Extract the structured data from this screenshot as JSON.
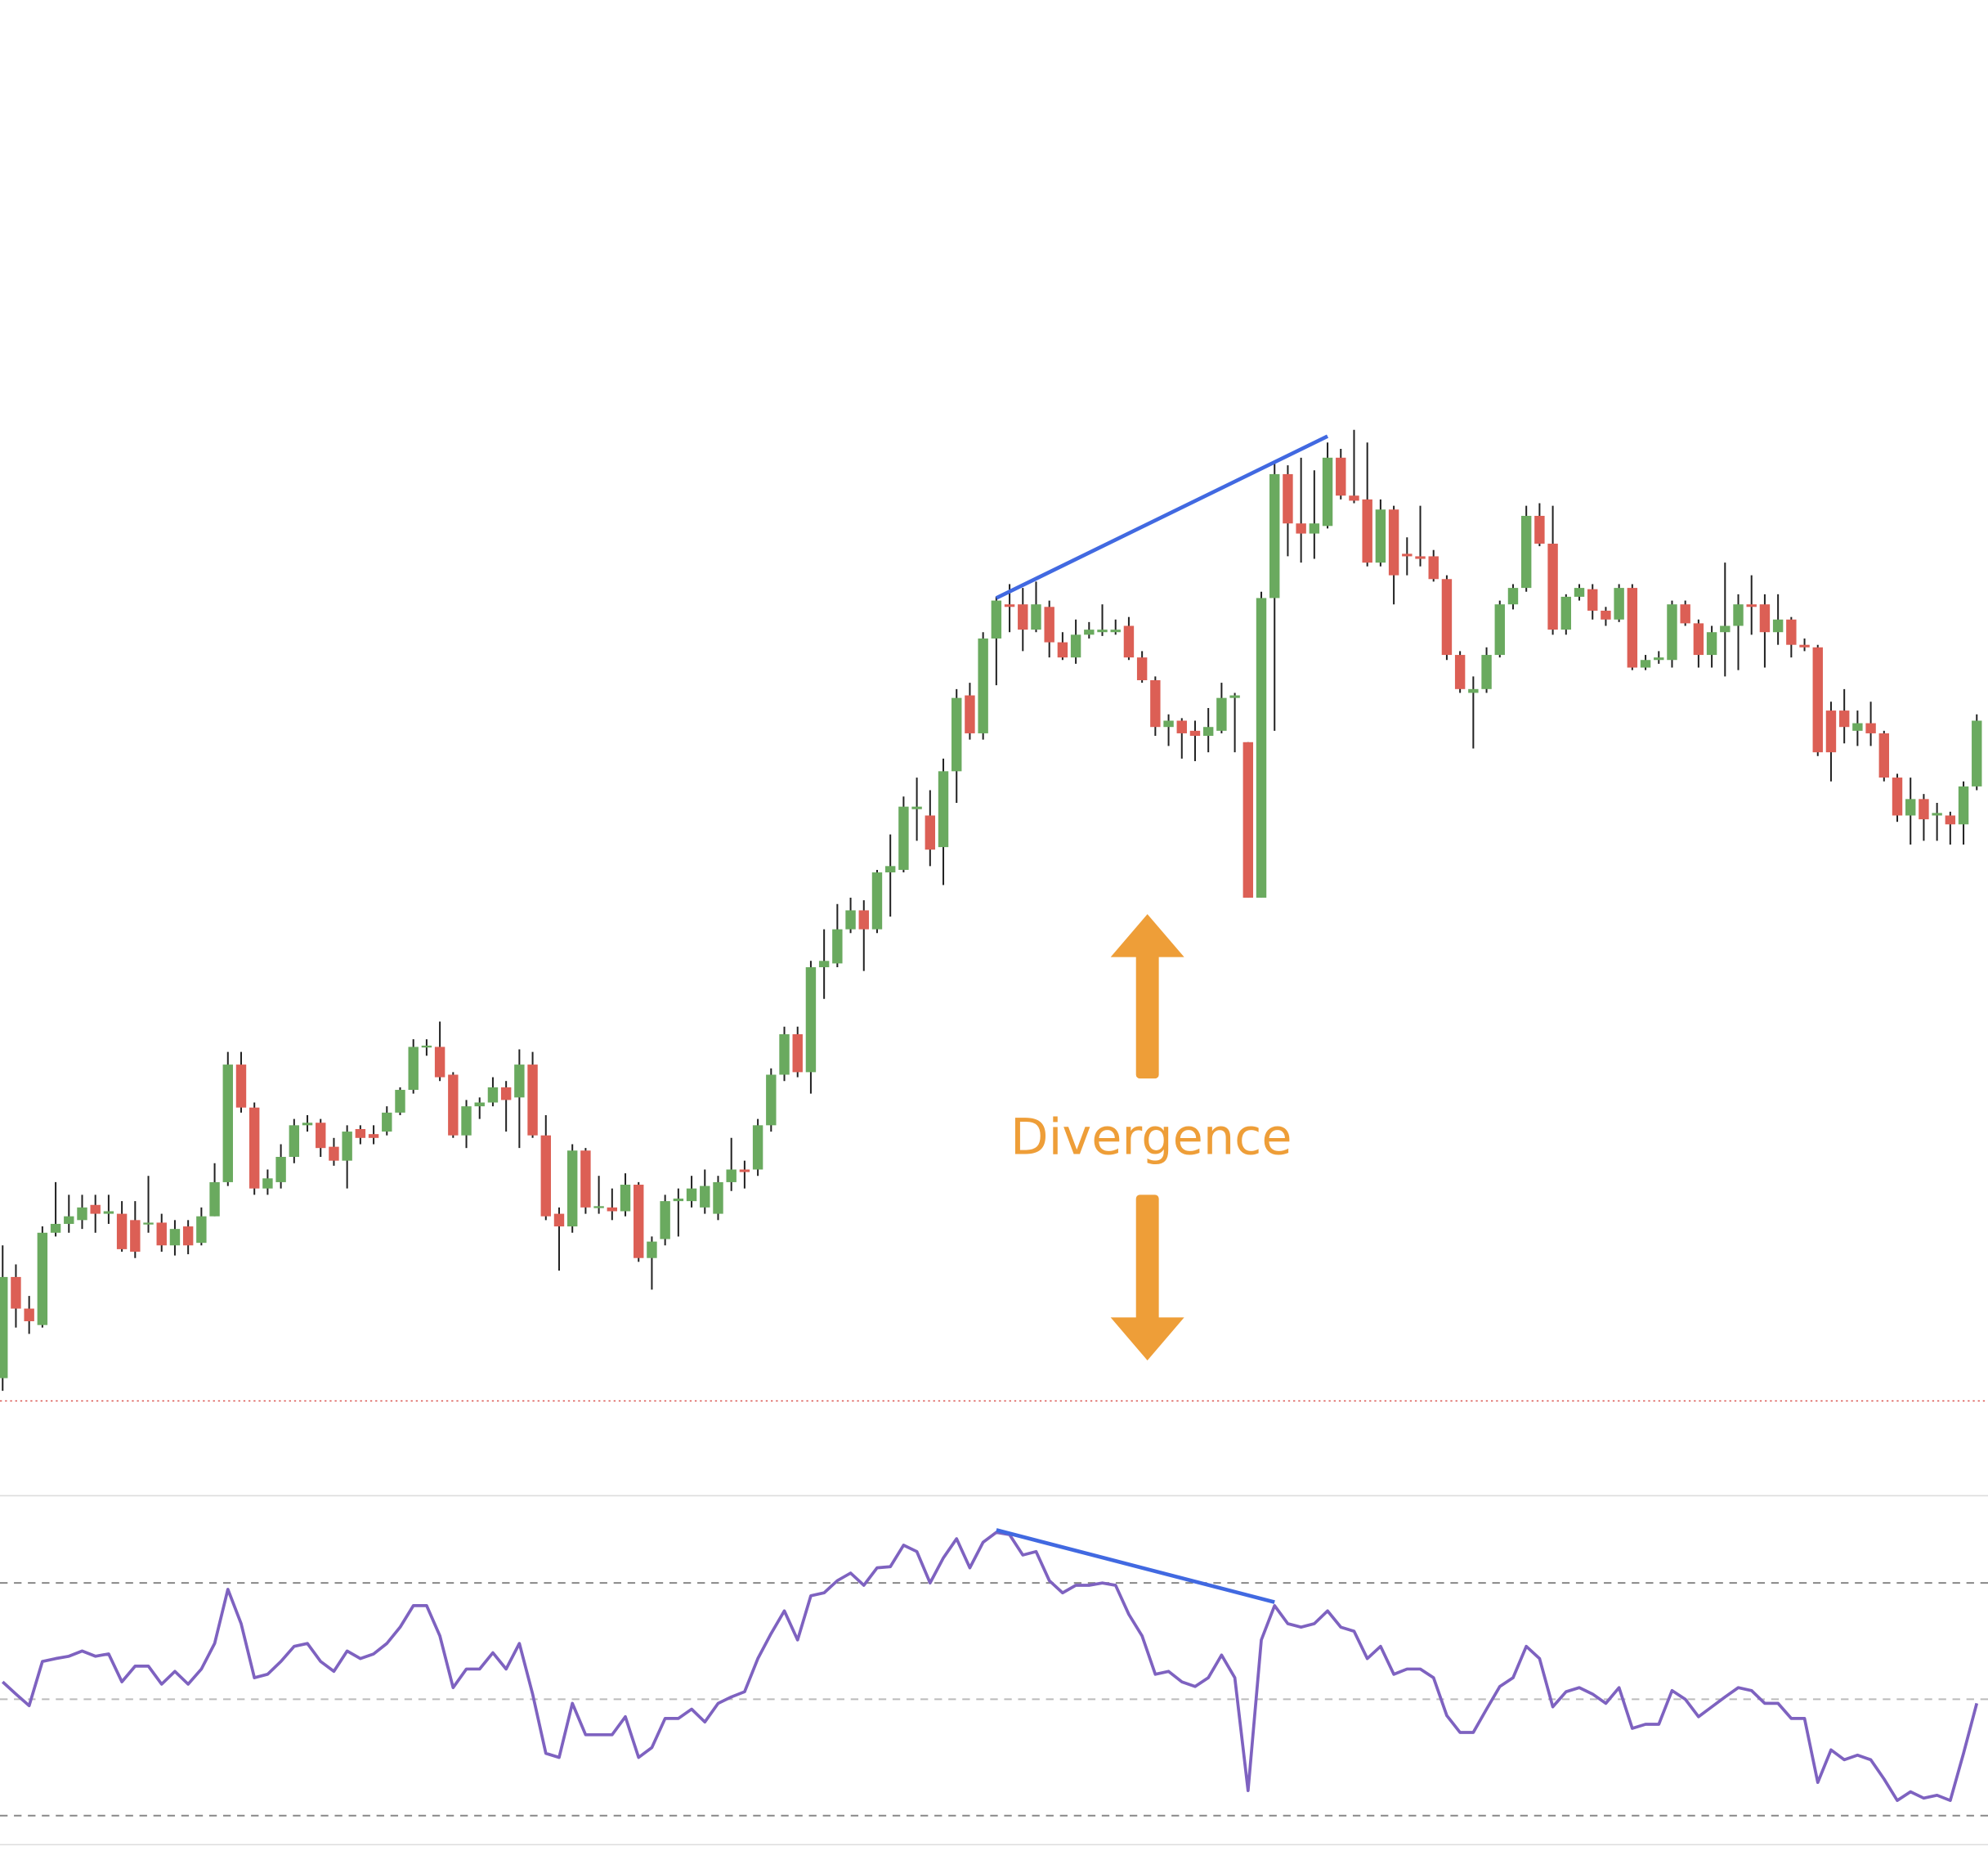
{
  "chart_data": [
    {
      "type": "candlestick",
      "open": [
        110,
        190,
        165,
        152,
        225,
        232,
        235,
        247,
        240,
        240,
        235,
        232,
        233,
        215,
        230,
        217,
        238,
        265,
        358,
        324,
        260,
        265,
        285,
        310,
        312,
        293,
        282,
        307,
        303,
        305,
        320,
        338,
        372,
        372,
        350,
        302,
        325,
        328,
        340,
        332,
        358,
        302,
        240,
        230,
        290,
        245,
        245,
        242,
        263,
        205,
        220,
        250,
        250,
        245,
        240,
        265,
        275,
        275,
        310,
        350,
        382,
        352,
        435,
        438,
        465,
        480,
        465,
        510,
        512,
        560,
        555,
        530,
        590,
        650,
        620,
        695,
        722,
        722,
        702,
        720,
        692,
        680,
        698,
        700,
        700,
        705,
        680,
        662,
        625,
        630,
        622,
        618,
        622,
        648,
        613,
        490,
        727,
        825,
        786,
        778,
        784,
        838,
        808,
        805,
        755,
        797,
        762,
        760,
        760,
        742,
        682,
        652,
        655,
        682,
        722,
        735,
        792,
        770,
        702,
        728,
        734,
        717,
        710,
        735,
        672,
        678,
        678,
        722,
        707,
        682,
        700,
        705,
        722,
        722,
        700,
        710,
        690,
        688,
        638,
        638,
        622,
        628,
        620,
        585,
        555,
        568,
        555,
        555,
        548,
        578
      ],
      "high": [
        215,
        200,
        175,
        230,
        265,
        255,
        255,
        255,
        255,
        250,
        250,
        270,
        240,
        235,
        235,
        245,
        280,
        368,
        368,
        328,
        275,
        295,
        315,
        318,
        315,
        300,
        310,
        310,
        310,
        325,
        340,
        378,
        378,
        392,
        352,
        330,
        332,
        348,
        345,
        370,
        368,
        318,
        245,
        295,
        292,
        270,
        260,
        272,
        265,
        222,
        255,
        260,
        270,
        275,
        270,
        300,
        282,
        315,
        355,
        388,
        388,
        440,
        465,
        485,
        490,
        488,
        512,
        540,
        570,
        585,
        575,
        600,
        655,
        660,
        700,
        728,
        738,
        735,
        740,
        725,
        700,
        710,
        708,
        722,
        710,
        712,
        685,
        665,
        635,
        632,
        630,
        640,
        660,
        652,
        613,
        732,
        835,
        832,
        838,
        828,
        850,
        845,
        860,
        850,
        805,
        800,
        775,
        800,
        765,
        745,
        685,
        665,
        688,
        725,
        738,
        800,
        802,
        800,
        730,
        738,
        738,
        720,
        738,
        738,
        682,
        685,
        725,
        725,
        710,
        705,
        755,
        730,
        745,
        730,
        730,
        712,
        695,
        690,
        645,
        655,
        638,
        645,
        622,
        588,
        585,
        572,
        565,
        558,
        582,
        635
      ],
      "low": [
        100,
        150,
        145,
        150,
        222,
        225,
        228,
        225,
        232,
        210,
        205,
        225,
        210,
        207,
        208,
        215,
        238,
        262,
        320,
        255,
        255,
        260,
        280,
        305,
        285,
        278,
        260,
        295,
        295,
        302,
        318,
        335,
        365,
        345,
        300,
        292,
        315,
        325,
        305,
        292,
        300,
        235,
        195,
        225,
        240,
        240,
        235,
        238,
        202,
        180,
        215,
        222,
        245,
        240,
        235,
        258,
        260,
        270,
        305,
        345,
        348,
        335,
        410,
        435,
        462,
        432,
        462,
        475,
        510,
        535,
        515,
        500,
        565,
        615,
        615,
        658,
        700,
        685,
        700,
        680,
        678,
        675,
        695,
        697,
        698,
        678,
        660,
        618,
        610,
        600,
        598,
        605,
        620,
        605,
        490,
        490,
        622,
        760,
        755,
        758,
        782,
        805,
        802,
        752,
        752,
        722,
        745,
        752,
        740,
        678,
        652,
        608,
        652,
        680,
        718,
        732,
        768,
        698,
        698,
        725,
        710,
        705,
        708,
        670,
        670,
        675,
        672,
        705,
        672,
        672,
        665,
        670,
        698,
        672,
        690,
        680,
        685,
        602,
        582,
        612,
        610,
        610,
        582,
        550,
        532,
        535,
        535,
        532,
        532,
        575
      ],
      "close": [
        190,
        165,
        155,
        225,
        232,
        238,
        245,
        240,
        242,
        212,
        210,
        233,
        215,
        228,
        215,
        238,
        265,
        358,
        324,
        260,
        268,
        285,
        310,
        312,
        292,
        282,
        305,
        300,
        300,
        320,
        338,
        372,
        373,
        348,
        302,
        325,
        328,
        340,
        330,
        358,
        302,
        238,
        230,
        290,
        245,
        246,
        242,
        263,
        205,
        218,
        250,
        252,
        260,
        262,
        265,
        275,
        273,
        310,
        350,
        382,
        352,
        435,
        440,
        465,
        480,
        465,
        510,
        515,
        562,
        562,
        528,
        590,
        648,
        620,
        695,
        725,
        720,
        702,
        722,
        692,
        680,
        698,
        702,
        702,
        702,
        680,
        662,
        625,
        630,
        620,
        618,
        625,
        648,
        650,
        490,
        727,
        825,
        786,
        778,
        786,
        838,
        808,
        804,
        755,
        797,
        745,
        760,
        758,
        742,
        682,
        655,
        655,
        682,
        722,
        735,
        792,
        770,
        702,
        728,
        735,
        717,
        710,
        735,
        672,
        678,
        680,
        722,
        707,
        682,
        700,
        705,
        722,
        720,
        700,
        710,
        690,
        688,
        605,
        605,
        625,
        628,
        620,
        585,
        555,
        568,
        552,
        557,
        548,
        578,
        630
      ],
      "up_color": "#6aaa5f",
      "down_color": "#dc5f55",
      "ylim": [
        17,
        1200
      ],
      "price_line": {
        "value": 92,
        "color": "#d9534f"
      },
      "trendline": {
        "x": [
          75,
          100
        ],
        "values": [
          727,
          855
        ],
        "color": "#4169e1"
      },
      "annotation": "Divergence",
      "annotation_color": "#ee9e38"
    },
    {
      "type": "line",
      "values": [
        53.0,
        50.9,
        48.9,
        56.5,
        57.0,
        57.4,
        58.3,
        57.4,
        57.8,
        53.0,
        55.7,
        55.7,
        52.6,
        54.8,
        52.6,
        55.2,
        59.6,
        68.9,
        63.0,
        53.7,
        54.3,
        56.5,
        59.1,
        59.6,
        56.5,
        54.8,
        58.3,
        57.0,
        57.8,
        59.6,
        62.4,
        66.1,
        66.1,
        60.9,
        52.0,
        55.2,
        55.2,
        58.0,
        55.2,
        59.6,
        50.9,
        40.7,
        40.0,
        49.3,
        43.9,
        43.9,
        43.9,
        47.0,
        40.0,
        41.7,
        46.7,
        46.7,
        48.3,
        46.1,
        49.3,
        50.4,
        51.3,
        57.0,
        61.3,
        65.2,
        60.2,
        67.8,
        68.3,
        70.4,
        71.7,
        69.6,
        72.6,
        72.8,
        76.5,
        75.4,
        70.0,
        74.3,
        77.6,
        72.6,
        77.0,
        78.7,
        78.3,
        74.8,
        75.4,
        70.4,
        68.3,
        69.6,
        69.6,
        70.0,
        69.6,
        64.6,
        60.9,
        54.3,
        54.8,
        53.0,
        52.2,
        53.7,
        57.6,
        53.7,
        34.3,
        60.2,
        66.1,
        63.0,
        62.4,
        63.0,
        65.2,
        62.4,
        61.7,
        57.0,
        59.1,
        54.3,
        55.2,
        55.2,
        53.7,
        47.2,
        44.3,
        44.3,
        48.3,
        52.2,
        53.7,
        59.1,
        57.0,
        48.7,
        51.3,
        52.0,
        50.9,
        49.3,
        52.0,
        45.0,
        45.7,
        45.7,
        51.5,
        50.0,
        47.0,
        48.7,
        50.4,
        52.0,
        51.5,
        49.3,
        49.3,
        46.7,
        46.7,
        35.7,
        41.3,
        39.6,
        40.4,
        39.6,
        36.3,
        32.6,
        34.1,
        33.0,
        33.5,
        32.6,
        40.7,
        49.3
      ],
      "color": "#7e62c0",
      "ylim": [
        25,
        85
      ],
      "yticks": [
        30,
        50,
        70
      ],
      "grid": true,
      "trendline": {
        "x": [
          75,
          96
        ],
        "values": [
          79.1,
          66.7
        ],
        "color": "#4169e1"
      }
    }
  ]
}
